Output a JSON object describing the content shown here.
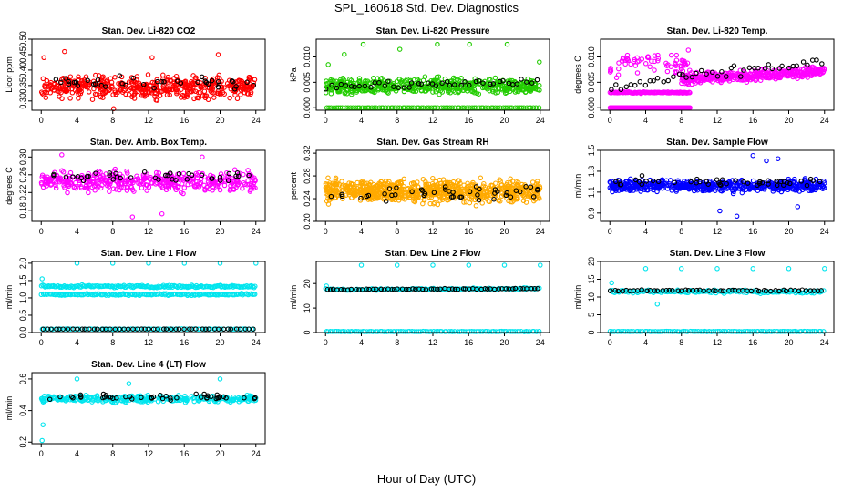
{
  "figure": {
    "title": "SPL_160618  Std. Dev. Diagnostics",
    "xlabel": "Hour of Day (UTC)"
  },
  "colors": {
    "red": "#ff0000",
    "green": "#22cc00",
    "magenta": "#ff00ff",
    "orange": "#ffaa00",
    "blue": "#0000ff",
    "cyan": "#00e5ee",
    "black": "#000000"
  },
  "chart_data": [
    {
      "type": "scatter",
      "title": "Stan. Dev. Li-820 CO2",
      "ylabel": "Licor ppm",
      "xlim": [
        0,
        24
      ],
      "xticks": [
        "0",
        "4",
        "8",
        "12",
        "16",
        "20",
        "24"
      ],
      "ylim": [
        0.27,
        0.5
      ],
      "yticks": [
        "0.30",
        "0.35",
        "0.40",
        "0.45",
        "0.50"
      ],
      "ytick_values": [
        0.3,
        0.35,
        0.4,
        0.45,
        0.5
      ],
      "series": [
        {
          "color": "red",
          "pattern": {
            "mode": "cloud",
            "base": 0.345,
            "spread": 0.05,
            "count": 480,
            "outliers": [
              [
                0.3,
                0.44
              ],
              [
                2.6,
                0.46
              ],
              [
                12.4,
                0.44
              ],
              [
                19.8,
                0.45
              ],
              [
                8.1,
                0.275
              ]
            ]
          }
        },
        {
          "color": "black",
          "pattern": {
            "mode": "cloud",
            "base": 0.36,
            "spread": 0.03,
            "count": 40
          }
        }
      ]
    },
    {
      "type": "scatter",
      "title": "Stan. Dev. Li-820 Pressure",
      "ylabel": "kPa",
      "xlim": [
        0,
        24
      ],
      "xticks": [
        "0",
        "4",
        "8",
        "12",
        "16",
        "20",
        "24"
      ],
      "ylim": [
        -0.0005,
        0.0135
      ],
      "yticks": [
        "0.000",
        "0.005",
        "0.010"
      ],
      "ytick_values": [
        0.0,
        0.005,
        0.01
      ],
      "series": [
        {
          "color": "green",
          "pattern": {
            "mode": "cloud",
            "base": 0.0042,
            "spread": 0.0022,
            "count": 520,
            "outliers": [
              [
                0.3,
                0.0085
              ],
              [
                4.2,
                0.0125
              ],
              [
                8.3,
                0.0115
              ],
              [
                12.5,
                0.0125
              ],
              [
                16.1,
                0.0125
              ],
              [
                20.3,
                0.0125
              ],
              [
                23.9,
                0.009
              ],
              [
                2.1,
                0.0105
              ]
            ]
          }
        },
        {
          "color": "green",
          "pattern": {
            "mode": "band",
            "base": 0.0,
            "spread": 0.0,
            "count": 90
          }
        },
        {
          "color": "black",
          "pattern": {
            "mode": "trend",
            "base": 0.004,
            "slope": 5e-05,
            "spread": 0.0012,
            "count": 45
          }
        }
      ]
    },
    {
      "type": "scatter",
      "title": "Stan. Dev. Li-820 Temp.",
      "ylabel": "degrees C",
      "xlim": [
        0,
        24
      ],
      "xticks": [
        "0",
        "4",
        "8",
        "12",
        "16",
        "20",
        "24"
      ],
      "ylim": [
        -0.0005,
        0.0135
      ],
      "yticks": [
        "0.000",
        "0.005",
        "0.010"
      ],
      "ytick_values": [
        0.0,
        0.005,
        0.01
      ],
      "series": [
        {
          "color": "magenta",
          "pattern": {
            "mode": "band",
            "base": 0.0,
            "spread": 0.0,
            "count": 120,
            "xrange": [
              0,
              9
            ]
          }
        },
        {
          "color": "magenta",
          "pattern": {
            "mode": "band",
            "base": 0.003,
            "spread": 0.0002,
            "count": 100,
            "xrange": [
              0,
              9
            ]
          }
        },
        {
          "color": "magenta",
          "pattern": {
            "mode": "cloud",
            "base": 0.0085,
            "spread": 0.0035,
            "count": 70,
            "xrange": [
              0,
              9
            ]
          }
        },
        {
          "color": "magenta",
          "pattern": {
            "mode": "trend",
            "base": 0.0048,
            "slope": 0.0001,
            "spread": 0.0015,
            "count": 380,
            "xrange": [
              8,
              24
            ]
          }
        },
        {
          "color": "black",
          "pattern": {
            "mode": "trend",
            "base": 0.004,
            "slope": 0.00022,
            "spread": 0.0015,
            "count": 45
          }
        }
      ]
    },
    {
      "type": "scatter",
      "title": "Stan. Dev. Amb. Box Temp.",
      "ylabel": "degrees C",
      "xlim": [
        0,
        24
      ],
      "xticks": [
        "0",
        "4",
        "8",
        "12",
        "16",
        "20",
        "24"
      ],
      "ylim": [
        0.155,
        0.315
      ],
      "yticks": [
        "0.18",
        "0.22",
        "0.26",
        "0.30"
      ],
      "ytick_values": [
        0.18,
        0.22,
        0.26,
        0.3
      ],
      "series": [
        {
          "color": "magenta",
          "pattern": {
            "mode": "cloud",
            "base": 0.245,
            "spread": 0.032,
            "count": 420,
            "outliers": [
              [
                2.3,
                0.305
              ],
              [
                10.2,
                0.165
              ],
              [
                13.5,
                0.172
              ],
              [
                18.0,
                0.3
              ]
            ]
          }
        },
        {
          "color": "black",
          "pattern": {
            "mode": "cloud",
            "base": 0.255,
            "spread": 0.02,
            "count": 40
          }
        }
      ]
    },
    {
      "type": "scatter",
      "title": "Stan. Dev. Gas Stream RH",
      "ylabel": "percent",
      "xlim": [
        0,
        24
      ],
      "xticks": [
        "0",
        "4",
        "8",
        "12",
        "16",
        "20",
        "24"
      ],
      "ylim": [
        0.2,
        0.325
      ],
      "yticks": [
        "0.20",
        "0.24",
        "0.28",
        "0.32"
      ],
      "ytick_values": [
        0.2,
        0.24,
        0.28,
        0.32
      ],
      "series": [
        {
          "color": "orange",
          "pattern": {
            "mode": "cloud",
            "base": 0.253,
            "spread": 0.027,
            "count": 820
          }
        },
        {
          "color": "black",
          "pattern": {
            "mode": "cloud",
            "base": 0.25,
            "spread": 0.02,
            "count": 45
          }
        }
      ]
    },
    {
      "type": "scatter",
      "title": "Stan. Dev. Sample Flow",
      "ylabel": "ml/min",
      "xlim": [
        0,
        24
      ],
      "xticks": [
        "0",
        "4",
        "8",
        "12",
        "16",
        "20",
        "24"
      ],
      "ylim": [
        0.82,
        1.5
      ],
      "yticks": [
        "0.9",
        "1.1",
        "1.3",
        "1.5"
      ],
      "ytick_values": [
        0.9,
        1.1,
        1.3,
        1.5
      ],
      "series": [
        {
          "color": "blue",
          "pattern": {
            "mode": "cloud",
            "base": 1.16,
            "spread": 0.08,
            "count": 560,
            "outliers": [
              [
                16.0,
                1.45
              ],
              [
                18.8,
                1.42
              ],
              [
                14.2,
                0.87
              ],
              [
                12.3,
                0.92
              ],
              [
                21.0,
                0.96
              ],
              [
                17.5,
                1.4
              ]
            ]
          }
        },
        {
          "color": "black",
          "pattern": {
            "mode": "cloud",
            "base": 1.2,
            "spread": 0.06,
            "count": 45
          }
        }
      ]
    },
    {
      "type": "scatter",
      "title": "Stan. Dev. Line 1 Flow",
      "ylabel": "ml/min",
      "xlim": [
        0,
        24
      ],
      "xticks": [
        "0",
        "4",
        "8",
        "12",
        "16",
        "20",
        "24"
      ],
      "ylim": [
        0,
        2.05
      ],
      "yticks": [
        "0.0",
        "0.5",
        "1.0",
        "1.5",
        "2.0"
      ],
      "ytick_values": [
        0.0,
        0.5,
        1.0,
        1.5,
        2.0
      ],
      "series": [
        {
          "color": "cyan",
          "pattern": {
            "mode": "band",
            "base": 1.33,
            "spread": 0.05,
            "count": 180
          }
        },
        {
          "color": "cyan",
          "pattern": {
            "mode": "band",
            "base": 1.1,
            "spread": 0.04,
            "count": 160,
            "outliers": [
              [
                4.0,
                2.0
              ],
              [
                8.0,
                2.0
              ],
              [
                12.0,
                2.0
              ],
              [
                16.0,
                2.0
              ],
              [
                20.0,
                2.0
              ],
              [
                24.0,
                2.0
              ],
              [
                0.1,
                1.55
              ]
            ]
          }
        },
        {
          "color": "cyan",
          "pattern": {
            "mode": "band",
            "base": 0.1,
            "spread": 0.01,
            "count": 80
          }
        },
        {
          "color": "black",
          "pattern": {
            "mode": "band",
            "base": 0.1,
            "spread": 0.005,
            "count": 50
          }
        }
      ]
    },
    {
      "type": "scatter",
      "title": "Stan. Dev. Line 2 Flow",
      "ylabel": "ml/min",
      "xlim": [
        0,
        24
      ],
      "xticks": [
        "0",
        "4",
        "8",
        "12",
        "16",
        "20",
        "24"
      ],
      "ylim": [
        0,
        29
      ],
      "yticks": [
        "0",
        "10",
        "20"
      ],
      "ytick_values": [
        0,
        10,
        20
      ],
      "series": [
        {
          "color": "cyan",
          "pattern": {
            "mode": "trend",
            "base": 17.5,
            "slope": 0.02,
            "spread": 0.5,
            "count": 140,
            "outliers": [
              [
                0.1,
                19.0
              ],
              [
                4.0,
                27.5
              ],
              [
                8.0,
                27.5
              ],
              [
                12.0,
                27.5
              ],
              [
                16.0,
                27.5
              ],
              [
                20.0,
                27.5
              ],
              [
                24.0,
                27.5
              ]
            ]
          }
        },
        {
          "color": "cyan",
          "pattern": {
            "mode": "band",
            "base": 0.4,
            "spread": 0.15,
            "count": 100
          }
        },
        {
          "color": "black",
          "pattern": {
            "mode": "trend",
            "base": 17.5,
            "slope": 0.02,
            "spread": 0.3,
            "count": 60
          }
        }
      ]
    },
    {
      "type": "scatter",
      "title": "Stan. Dev. Line 3 Flow",
      "ylabel": "ml/min",
      "xlim": [
        0,
        24
      ],
      "xticks": [
        "0",
        "4",
        "8",
        "12",
        "16",
        "20",
        "24"
      ],
      "ylim": [
        0,
        20
      ],
      "yticks": [
        "0",
        "5",
        "10",
        "15",
        "20"
      ],
      "ytick_values": [
        0,
        5,
        10,
        15,
        20
      ],
      "series": [
        {
          "color": "cyan",
          "pattern": {
            "mode": "band",
            "base": 11.5,
            "spread": 0.6,
            "count": 140,
            "outliers": [
              [
                0.2,
                14.0
              ],
              [
                4.0,
                18.0
              ],
              [
                5.3,
                8.0
              ],
              [
                8.0,
                18.0
              ],
              [
                12.0,
                18.0
              ],
              [
                16.0,
                18.0
              ],
              [
                20.0,
                18.0
              ],
              [
                24.0,
                18.0
              ]
            ]
          }
        },
        {
          "color": "cyan",
          "pattern": {
            "mode": "band",
            "base": 0.3,
            "spread": 0.1,
            "count": 100
          }
        },
        {
          "color": "black",
          "pattern": {
            "mode": "band",
            "base": 11.8,
            "spread": 0.3,
            "count": 55
          }
        }
      ]
    },
    {
      "type": "scatter",
      "title": "Stan. Dev. Line 4 (LT) Flow",
      "ylabel": "ml/min",
      "xlim": [
        0,
        24
      ],
      "xticks": [
        "0",
        "4",
        "8",
        "12",
        "16",
        "20",
        "24"
      ],
      "ylim": [
        0.19,
        0.64
      ],
      "yticks": [
        "0.2",
        "0.4",
        "0.6"
      ],
      "ytick_values": [
        0.2,
        0.4,
        0.6
      ],
      "series": [
        {
          "color": "cyan",
          "pattern": {
            "mode": "cloud",
            "base": 0.475,
            "spread": 0.03,
            "count": 330,
            "outliers": [
              [
                0.1,
                0.21
              ],
              [
                0.2,
                0.31
              ],
              [
                4.0,
                0.6
              ],
              [
                9.8,
                0.57
              ],
              [
                20.0,
                0.6
              ]
            ]
          }
        },
        {
          "color": "black",
          "pattern": {
            "mode": "cloud",
            "base": 0.485,
            "spread": 0.025,
            "count": 45
          }
        }
      ]
    }
  ]
}
